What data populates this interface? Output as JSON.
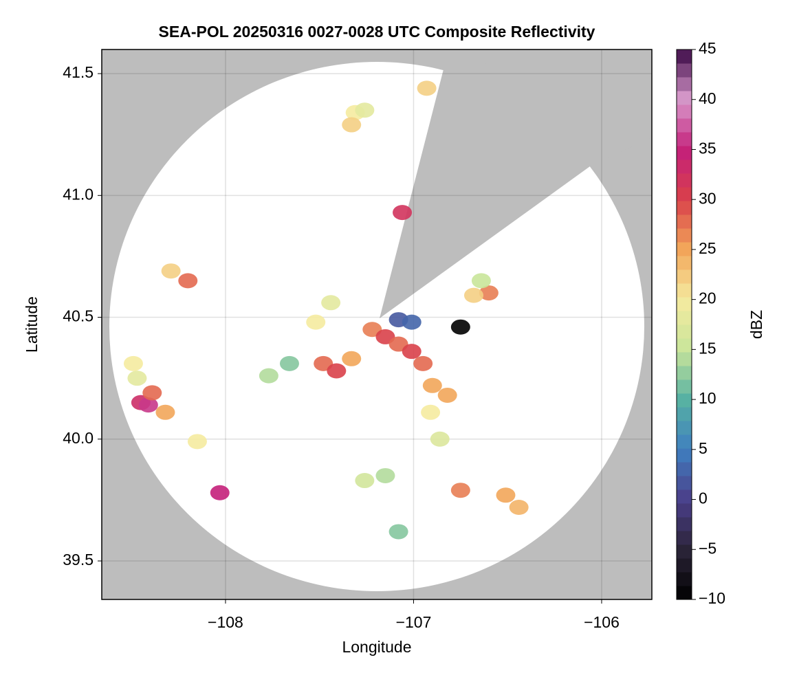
{
  "chart_data": {
    "type": "scatter",
    "title": "SEA-POL 20250316 0027-0028 UTC Composite Reflectivity",
    "x_label": "Longitude",
    "y_label": "Latitude",
    "xlim": [
      -108.658,
      -105.733
    ],
    "ylim": [
      39.342,
      41.599
    ],
    "xticks": [
      {
        "value": -108,
        "label": "−108"
      },
      {
        "value": -107,
        "label": "−107"
      },
      {
        "value": -106,
        "label": "−106"
      }
    ],
    "yticks": [
      39.5,
      {
        "value": 40,
        "label": "40.0"
      },
      40.5,
      {
        "value": 41,
        "label": "41.0"
      },
      41.5
    ],
    "grid": true,
    "x": [
      -107.31,
      -107.33,
      -107.26,
      -106.93,
      -107.06,
      -108.29,
      -108.2,
      -107.22,
      -107.15,
      -107.08,
      -107.01,
      -106.95,
      -106.9,
      -106.82,
      -106.91,
      -106.86,
      -107.48,
      -107.41,
      -107.33,
      -107.52,
      -107.44,
      -107.66,
      -107.77,
      -107.08,
      -107.01,
      -106.6,
      -106.68,
      -106.64,
      -108.45,
      -108.41,
      -108.39,
      -108.47,
      -108.32,
      -108.49,
      -108.03,
      -108.15,
      -107.15,
      -107.26,
      -106.75,
      -106.51,
      -106.44,
      -107.08,
      -106.75
    ],
    "y": [
      41.34,
      41.29,
      41.35,
      41.44,
      40.93,
      40.69,
      40.65,
      40.45,
      40.42,
      40.39,
      40.36,
      40.31,
      40.22,
      40.18,
      40.11,
      40.0,
      40.31,
      40.28,
      40.33,
      40.48,
      40.56,
      40.31,
      40.26,
      40.49,
      40.48,
      40.6,
      40.59,
      40.65,
      40.15,
      40.14,
      40.19,
      40.25,
      40.11,
      40.31,
      39.78,
      39.99,
      39.85,
      39.83,
      39.79,
      39.77,
      39.72,
      39.62,
      40.46
    ],
    "values": [
      20,
      22,
      18,
      22,
      32,
      22,
      28,
      27,
      30,
      28,
      30,
      28,
      25,
      25,
      20,
      17,
      28,
      30,
      25,
      20,
      18,
      12,
      14,
      2,
      3,
      27,
      22,
      15,
      33,
      36,
      28,
      18,
      25,
      20,
      35,
      20,
      14,
      16,
      27,
      25,
      24,
      12,
      -10
    ],
    "colorbar": {
      "label": "dBZ",
      "lim": [
        -10,
        45
      ],
      "ticks": [
        {
          "value": -10,
          "label": "−10"
        },
        {
          "value": -5,
          "label": "−5"
        },
        0,
        5,
        10,
        15,
        20,
        25,
        30,
        35,
        40,
        45
      ],
      "colors": [
        "#000000",
        "#2b2438",
        "#4b3f8a",
        "#3f7fc0",
        "#57b2a3",
        "#c9e59a",
        "#f5eba0",
        "#f2a65a",
        "#d9414a",
        "#c4207a",
        "#d99acc",
        "#3a0845"
      ]
    }
  }
}
